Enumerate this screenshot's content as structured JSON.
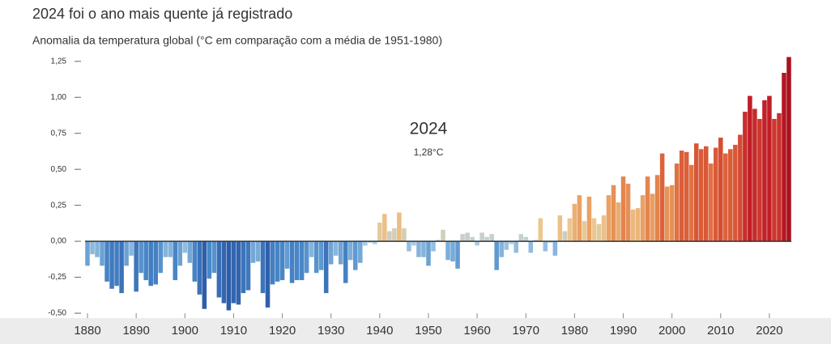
{
  "chart_data": {
    "type": "bar",
    "title": "2024 foi o ano mais quente já registrado",
    "subtitle": "Anomalia da temperatura global (°C em comparação com a média de 1951-1980)",
    "annotations": [
      "2024",
      "1,28°C"
    ],
    "x": [
      1880,
      1881,
      1882,
      1883,
      1884,
      1885,
      1886,
      1887,
      1888,
      1889,
      1890,
      1891,
      1892,
      1893,
      1894,
      1895,
      1896,
      1897,
      1898,
      1899,
      1900,
      1901,
      1902,
      1903,
      1904,
      1905,
      1906,
      1907,
      1908,
      1909,
      1910,
      1911,
      1912,
      1913,
      1914,
      1915,
      1916,
      1917,
      1918,
      1919,
      1920,
      1921,
      1922,
      1923,
      1924,
      1925,
      1926,
      1927,
      1928,
      1929,
      1930,
      1931,
      1932,
      1933,
      1934,
      1935,
      1936,
      1937,
      1938,
      1939,
      1940,
      1941,
      1942,
      1943,
      1944,
      1945,
      1946,
      1947,
      1948,
      1949,
      1950,
      1951,
      1952,
      1953,
      1954,
      1955,
      1956,
      1957,
      1958,
      1959,
      1960,
      1961,
      1962,
      1963,
      1964,
      1965,
      1966,
      1967,
      1968,
      1969,
      1970,
      1971,
      1972,
      1973,
      1974,
      1975,
      1976,
      1977,
      1978,
      1979,
      1980,
      1981,
      1982,
      1983,
      1984,
      1985,
      1986,
      1987,
      1988,
      1989,
      1990,
      1991,
      1992,
      1993,
      1994,
      1995,
      1996,
      1997,
      1998,
      1999,
      2000,
      2001,
      2002,
      2003,
      2004,
      2005,
      2006,
      2007,
      2008,
      2009,
      2010,
      2011,
      2012,
      2013,
      2014,
      2015,
      2016,
      2017,
      2018,
      2019,
      2020,
      2021,
      2022,
      2023,
      2024
    ],
    "values": [
      -0.17,
      -0.09,
      -0.11,
      -0.17,
      -0.28,
      -0.33,
      -0.31,
      -0.36,
      -0.17,
      -0.1,
      -0.35,
      -0.22,
      -0.27,
      -0.31,
      -0.3,
      -0.22,
      -0.11,
      -0.11,
      -0.27,
      -0.17,
      -0.08,
      -0.15,
      -0.28,
      -0.37,
      -0.47,
      -0.26,
      -0.22,
      -0.39,
      -0.43,
      -0.48,
      -0.43,
      -0.44,
      -0.36,
      -0.34,
      -0.15,
      -0.14,
      -0.36,
      -0.46,
      -0.3,
      -0.28,
      -0.27,
      -0.19,
      -0.29,
      -0.27,
      -0.27,
      -0.22,
      -0.11,
      -0.22,
      -0.2,
      -0.36,
      -0.16,
      -0.1,
      -0.16,
      -0.29,
      -0.13,
      -0.2,
      -0.15,
      -0.03,
      -0.01,
      -0.02,
      0.13,
      0.19,
      0.07,
      0.09,
      0.2,
      0.09,
      -0.07,
      -0.03,
      -0.11,
      -0.11,
      -0.17,
      -0.07,
      0.01,
      0.08,
      -0.13,
      -0.14,
      -0.19,
      0.05,
      0.06,
      0.03,
      -0.03,
      0.06,
      0.03,
      0.05,
      -0.2,
      -0.11,
      -0.06,
      -0.02,
      -0.08,
      0.05,
      0.03,
      -0.08,
      0.01,
      0.16,
      -0.07,
      -0.01,
      -0.1,
      0.18,
      0.07,
      0.16,
      0.26,
      0.32,
      0.14,
      0.31,
      0.16,
      0.12,
      0.18,
      0.32,
      0.39,
      0.27,
      0.45,
      0.4,
      0.22,
      0.23,
      0.32,
      0.45,
      0.33,
      0.46,
      0.61,
      0.38,
      0.39,
      0.54,
      0.63,
      0.62,
      0.53,
      0.68,
      0.64,
      0.66,
      0.54,
      0.65,
      0.72,
      0.61,
      0.64,
      0.67,
      0.74,
      0.9,
      1.01,
      0.92,
      0.85,
      0.98,
      1.01,
      0.85,
      0.89,
      1.17,
      1.28
    ],
    "color_scale": [
      {
        "value": -0.5,
        "color": "#2b58a6"
      },
      {
        "value": -0.25,
        "color": "#4a8ac9"
      },
      {
        "value": 0,
        "color": "#b3d4ea"
      },
      {
        "value": 0.15,
        "color": "#ecc890"
      },
      {
        "value": 0.35,
        "color": "#e89a5c"
      },
      {
        "value": 0.65,
        "color": "#da5a36"
      },
      {
        "value": 1.0,
        "color": "#c21d27"
      },
      {
        "value": 1.3,
        "color": "#a8101e"
      }
    ],
    "xlim": [
      1879.5,
      2024.5
    ],
    "xticks": [
      1880,
      1890,
      1900,
      1910,
      1920,
      1930,
      1940,
      1950,
      1960,
      1970,
      1980,
      1990,
      2000,
      2010,
      2020
    ],
    "ylim": [
      -0.5,
      1.35
    ],
    "yticks": [
      {
        "value": -0.5,
        "label": "-0,50"
      },
      {
        "value": -0.25,
        "label": "-0,25"
      },
      {
        "value": 0,
        "label": "0,00"
      },
      {
        "value": 0.25,
        "label": "0,25"
      },
      {
        "value": 0.5,
        "label": "0,50"
      },
      {
        "value": 0.75,
        "label": "0,75"
      },
      {
        "value": 1,
        "label": "1,00"
      },
      {
        "value": 1.25,
        "label": "1,25"
      }
    ],
    "grid": false
  }
}
